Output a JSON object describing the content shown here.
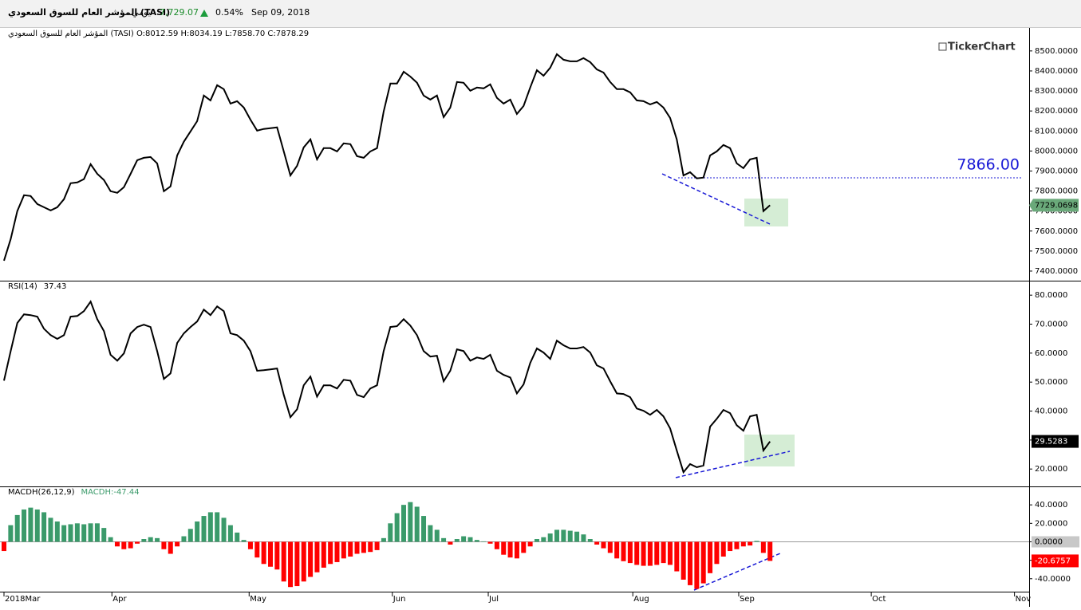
{
  "header": {
    "name": "المؤشر العام للسوق السعودي (TASI)",
    "period": "يومي",
    "last": "7,729.07",
    "change": "0.54%",
    "date": "Sep 09, 2018"
  },
  "logo": "TickerChart",
  "chart_data": [
    {
      "type": "line",
      "title": "المؤشر العام للسوق السعودي (TASI) O:8012.59 H:8034.19 L:7858.70 C:7878.29",
      "color": "#000000",
      "categories": [
        null,
        null,
        null,
        null,
        null,
        null,
        null,
        null,
        null,
        null,
        null,
        null,
        null,
        null,
        null,
        null,
        null,
        null,
        null,
        null,
        null,
        null,
        null,
        null,
        null,
        null,
        null,
        null,
        null,
        null,
        null,
        null,
        null,
        null,
        null,
        null,
        null,
        null,
        null,
        null,
        null,
        null,
        null,
        null,
        null,
        null,
        null,
        null,
        null,
        null,
        null,
        null,
        null,
        null,
        null,
        null,
        null,
        null,
        null,
        null,
        null,
        null,
        null,
        null,
        null,
        null,
        null,
        null,
        null,
        null,
        null,
        null,
        null,
        null,
        null,
        null,
        null,
        null,
        null,
        null,
        null,
        null,
        null,
        null,
        null,
        null,
        null,
        null,
        null,
        null,
        null,
        null,
        null,
        null,
        null,
        null,
        null,
        null,
        null,
        null,
        null,
        null,
        null,
        null,
        null,
        null,
        null,
        null,
        null,
        null,
        null,
        null,
        null,
        null,
        null,
        null
      ],
      "values": [
        7452,
        7560,
        7700,
        7779,
        7775,
        7735,
        7719,
        7703,
        7719,
        7759,
        7839,
        7843,
        7859,
        7934,
        7886,
        7855,
        7799,
        7791,
        7819,
        7886,
        7954,
        7966,
        7970,
        7938,
        7799,
        7823,
        7978,
        8046,
        8098,
        8149,
        8277,
        8253,
        8329,
        8309,
        8237,
        8249,
        8217,
        8157,
        8102,
        8110,
        8114,
        8118,
        7998,
        7878,
        7926,
        8018,
        8058,
        7958,
        8014,
        8014,
        7998,
        8038,
        8034,
        7974,
        7966,
        7998,
        8014,
        8197,
        8337,
        8337,
        8396,
        8372,
        8341,
        8277,
        8257,
        8277,
        8169,
        8217,
        8345,
        8341,
        8301,
        8317,
        8313,
        8333,
        8265,
        8237,
        8257,
        8185,
        8225,
        8317,
        8404,
        8376,
        8416,
        8484,
        8456,
        8448,
        8448,
        8464,
        8444,
        8408,
        8392,
        8345,
        8309,
        8309,
        8293,
        8253,
        8249,
        8233,
        8245,
        8217,
        8165,
        8058,
        7878,
        7894,
        7863,
        7867,
        7978,
        7998,
        8030,
        8014,
        7938,
        7914,
        7958,
        7966,
        7700,
        7729.07
      ],
      "xlim": [
        -0.6,
        153.9
      ],
      "ylim": [
        7352,
        8615
      ],
      "yticks": [
        {
          "value": 7400,
          "label": "7400.0000"
        },
        {
          "value": 7500,
          "label": "7500.0000"
        },
        {
          "value": 7600,
          "label": "7600.0000"
        },
        {
          "value": 7700,
          "label": "7700.0000"
        },
        {
          "value": 7800,
          "label": "7800.0000"
        },
        {
          "value": 7900,
          "label": "7900.0000"
        },
        {
          "value": 8000,
          "label": "8000.0000"
        },
        {
          "value": 8100,
          "label": "8100.0000"
        },
        {
          "value": 8200,
          "label": "8200.0000"
        },
        {
          "value": 8300,
          "label": "8300.0000"
        },
        {
          "value": 8400,
          "label": "8400.0000"
        },
        {
          "value": 8500,
          "label": "8500.0000"
        }
      ],
      "last_value": 7729.0698,
      "last_color": "#6aa97a",
      "reference_line": {
        "value": 7866,
        "label": "7866.00",
        "color": "#1a1ad6"
      }
    },
    {
      "type": "line",
      "title": "RSI(14)",
      "title_value": "37.43",
      "color": "#000000",
      "categories": [
        null,
        null,
        null,
        null,
        null,
        null,
        null,
        null,
        null,
        null,
        null,
        null,
        null,
        null,
        null,
        null,
        null,
        null,
        null,
        null,
        null,
        null,
        null,
        null,
        null,
        null,
        null,
        null,
        null,
        null,
        null,
        null,
        null,
        null,
        null,
        null,
        null,
        null,
        null,
        null,
        null,
        null,
        null,
        null,
        null,
        null,
        null,
        null,
        null,
        null,
        null,
        null,
        null,
        null,
        null,
        null,
        null,
        null,
        null,
        null,
        null,
        null,
        null,
        null,
        null,
        null,
        null,
        null,
        null,
        null,
        null,
        null,
        null,
        null,
        null,
        null,
        null,
        null,
        null,
        null,
        null,
        null,
        null,
        null,
        null,
        null,
        null,
        null,
        null,
        null,
        null,
        null,
        null,
        null,
        null,
        null,
        null,
        null,
        null,
        null,
        null,
        null,
        null,
        null,
        null,
        null,
        null,
        null,
        null,
        null,
        null,
        null,
        null,
        null,
        null,
        null
      ],
      "values": [
        50.5,
        60.7,
        70.4,
        73.4,
        73.1,
        72.6,
        68.4,
        66.2,
        64.9,
        66.2,
        72.6,
        72.8,
        74.5,
        77.8,
        71.7,
        67.6,
        59.4,
        57.4,
        59.9,
        66.8,
        69.0,
        69.8,
        69.0,
        60.7,
        51.1,
        53.0,
        63.5,
        66.8,
        69.0,
        70.9,
        75.0,
        73.1,
        76.1,
        74.5,
        66.8,
        66.2,
        64.3,
        60.7,
        53.9,
        54.1,
        54.4,
        54.7,
        45.6,
        37.9,
        40.6,
        48.9,
        51.9,
        45.0,
        48.9,
        48.9,
        47.8,
        50.8,
        50.5,
        45.6,
        44.8,
        47.8,
        48.9,
        60.7,
        69.0,
        69.3,
        71.7,
        69.5,
        66.2,
        60.7,
        58.8,
        59.1,
        50.3,
        53.9,
        61.3,
        60.7,
        57.4,
        58.5,
        58.0,
        59.4,
        53.9,
        52.5,
        51.6,
        46.1,
        49.2,
        56.6,
        61.6,
        60.2,
        58.0,
        64.3,
        62.7,
        61.6,
        61.6,
        62.1,
        60.2,
        55.8,
        54.7,
        50.3,
        46.1,
        45.9,
        44.8,
        40.9,
        40.1,
        38.7,
        40.4,
        38.2,
        34.0,
        26.4,
        18.9,
        21.7,
        20.6,
        21.2,
        34.6,
        37.3,
        40.4,
        39.3,
        35.1,
        33.2,
        38.2,
        38.7,
        26.4,
        29.5
      ],
      "xlim": [
        -0.6,
        153.9
      ],
      "ylim": [
        14,
        85
      ],
      "yticks": [
        {
          "value": 20,
          "label": "20.0000"
        },
        {
          "value": 30,
          "label": "30.0000"
        },
        {
          "value": 40,
          "label": "40.0000"
        },
        {
          "value": 50,
          "label": "50.0000"
        },
        {
          "value": 60,
          "label": "60.0000"
        },
        {
          "value": 70,
          "label": "70.0000"
        },
        {
          "value": 80,
          "label": "80.0000"
        }
      ],
      "last_value": 29.5283,
      "last_color": "#000000"
    },
    {
      "type": "bar",
      "title": "MACDH(26,12,9)",
      "title_value": "MACDH:-47.44",
      "positive_color": "#3a9a6a",
      "negative_color": "#ff0000",
      "categories": [
        null,
        null,
        null,
        null,
        null,
        null,
        null,
        null,
        null,
        null,
        null,
        null,
        null,
        null,
        null,
        null,
        null,
        null,
        null,
        null,
        null,
        null,
        null,
        null,
        null,
        null,
        null,
        null,
        null,
        null,
        null,
        null,
        null,
        null,
        null,
        null,
        null,
        null,
        null,
        null,
        null,
        null,
        null,
        null,
        null,
        null,
        null,
        null,
        null,
        null,
        null,
        null,
        null,
        null,
        null,
        null,
        null,
        null,
        null,
        null,
        null,
        null,
        null,
        null,
        null,
        null,
        null,
        null,
        null,
        null,
        null,
        null,
        null,
        null,
        null,
        null,
        null,
        null,
        null,
        null,
        null,
        null,
        null,
        null,
        null,
        null,
        null,
        null,
        null,
        null,
        null,
        null,
        null,
        null,
        null,
        null,
        null,
        null,
        null,
        null,
        null,
        null,
        null,
        null,
        null,
        null,
        null,
        null,
        null,
        null,
        null,
        null,
        null,
        null,
        null,
        null
      ],
      "values": [
        -10,
        18,
        29,
        35,
        37,
        35,
        32,
        26,
        22,
        18,
        19,
        20,
        19,
        20,
        20,
        15,
        5,
        -5,
        -8,
        -7,
        -2,
        3,
        5,
        4,
        -8,
        -13,
        -5,
        6,
        14,
        22,
        28,
        32,
        32,
        26,
        18,
        10,
        2,
        -8,
        -17,
        -24,
        -27,
        -30,
        -43,
        -49,
        -48,
        -43,
        -38,
        -33,
        -28,
        -24,
        -22,
        -18,
        -16,
        -13,
        -12,
        -11,
        -9,
        4,
        20,
        31,
        40,
        43,
        38,
        28,
        18,
        13,
        4,
        -3,
        3,
        6,
        5,
        2,
        0.5,
        -2,
        -8,
        -14,
        -17,
        -18,
        -12,
        -5,
        3,
        5,
        9,
        13,
        13,
        12,
        11,
        8,
        3,
        -3,
        -7,
        -12,
        -18,
        -21,
        -23,
        -25,
        -26,
        -26,
        -25,
        -23,
        -25,
        -32,
        -41,
        -47,
        -51,
        -45,
        -34,
        -24,
        -16,
        -10,
        -8,
        -5,
        -4,
        1,
        -12,
        -20.68
      ],
      "xlim": [
        -0.6,
        153.9
      ],
      "ylim": [
        -54,
        60
      ],
      "yticks": [
        {
          "value": -40,
          "label": "-40.0000"
        },
        {
          "value": -20,
          "label": "-20.0000"
        },
        {
          "value": 0,
          "label": "0.0000"
        },
        {
          "value": 20,
          "label": "20.0000"
        },
        {
          "value": 40,
          "label": "40.0000"
        }
      ],
      "xticks": [
        {
          "value": 0,
          "label": "2018Mar"
        },
        {
          "value": 16.2,
          "label": "Apr"
        },
        {
          "value": 36.8,
          "label": "May"
        },
        {
          "value": 58.3,
          "label": "Jun"
        },
        {
          "value": 72.7,
          "label": "Jul"
        },
        {
          "value": 94.4,
          "label": "Aug"
        },
        {
          "value": 110.3,
          "label": "Sep"
        },
        {
          "value": 130.2,
          "label": "Oct"
        },
        {
          "value": 151.7,
          "label": "Nov"
        }
      ],
      "last_value": -20.6757,
      "last_color": "#ff0000"
    }
  ]
}
